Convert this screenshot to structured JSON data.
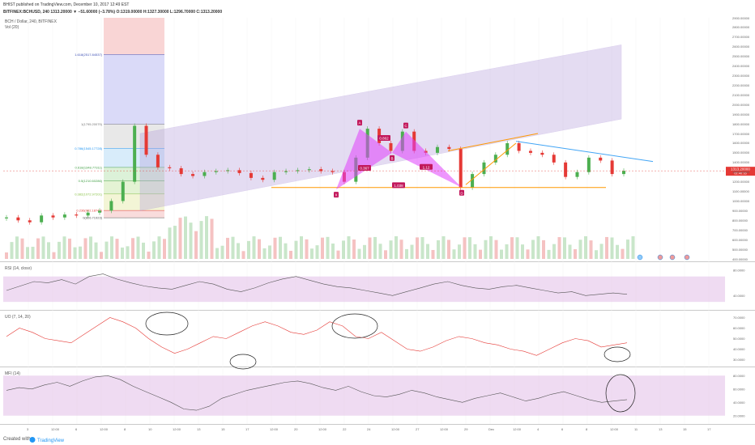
{
  "header": {
    "author_line": "BHIST published on TradingView.com, December 10, 2017 12:49 EST",
    "ticker_line": "BITFINEX:BCHUSD, 240  1313.20000 ▼ −51.60000 (−3.78%) O:1319.00000 H:1327.30000 L:1296.70000 C:1313.20000",
    "chart_title": "BCH / Dollar, 240, BITFINEX",
    "vol_label": "Vol (20)"
  },
  "price_axis": [
    "2900.00000",
    "2800.00000",
    "2700.00000",
    "2600.00000",
    "2500.00000",
    "2400.00000",
    "2300.00000",
    "2200.00000",
    "2100.00000",
    "2000.00000",
    "1900.00000",
    "1800.00000",
    "1700.00000",
    "1600.00000",
    "1500.00000",
    "1400.00000",
    "1300.00000",
    "1200.00000",
    "1100.00000",
    "1000.00000",
    "900.00000",
    "800.00000",
    "700.00000",
    "600.00000",
    "500.00000",
    "400.00000"
  ],
  "last_price": "1313.20000",
  "last_time": "02:40:16",
  "fib_levels": [
    {
      "label": "1.618(2517.84537)",
      "color": "#3f51b5"
    },
    {
      "label": "1(1795.20079)",
      "color": "#777777"
    },
    {
      "label": "0.786(1545.17728)",
      "color": "#2196f3"
    },
    {
      "label": "0.618(1348.77311)",
      "color": "#43a047"
    },
    {
      "label": "0.5(1210.60286)",
      "color": "#43a047"
    },
    {
      "label": "0.382(1072.97201)",
      "color": "#8bc34a"
    },
    {
      "label": "0.236(902.18743)",
      "color": "#e53935"
    },
    {
      "label": "0(826.71923)",
      "color": "#555555"
    }
  ],
  "pattern_points": [
    "X",
    "A",
    "B",
    "C",
    "D"
  ],
  "pattern_ratios": [
    "0.862",
    "0.367",
    "1.12",
    "1.038"
  ],
  "indicators": {
    "rsi": {
      "label": "RSI (14, close)",
      "ticks": [
        "80.0000",
        "40.0000"
      ]
    },
    "uo": {
      "label": "UO (7, 14, 28)",
      "ticks": [
        "70.0000",
        "60.0000",
        "50.0000",
        "40.0000",
        "30.0000"
      ]
    },
    "mfi": {
      "label": "MFI (14)",
      "ticks": [
        "80.0000",
        "60.0000",
        "40.0000",
        "20.0000"
      ]
    }
  },
  "time_axis": [
    "3",
    "12:00",
    "6",
    "12:00",
    "8",
    "10",
    "12:00",
    "13",
    "15",
    "17",
    "12:00",
    "20",
    "12:00",
    "22",
    "24",
    "12:00",
    "27",
    "12:00",
    "29",
    "Dec",
    "12:00",
    "4",
    "6",
    "8",
    "12:00",
    "11",
    "13",
    "15",
    "17"
  ],
  "footer": {
    "created": "Created with",
    "brand": "TradingView"
  },
  "chart_data": {
    "type": "candlestick",
    "title": "BCH / Dollar, 240, BITFINEX",
    "ylabel": "",
    "ylim": [
      400,
      2900
    ],
    "series": [
      {
        "name": "BCHUSD",
        "values": [
          830,
          800,
          780,
          850,
          830,
          860,
          850,
          880,
          900,
          1000,
          1200,
          1780,
          1480,
          1350,
          1340,
          1280,
          1260,
          1300,
          1310,
          1320,
          1290,
          1240,
          1220,
          1300,
          1310,
          1320,
          1330,
          1310,
          1300,
          1200,
          1450,
          1750,
          1600,
          1520,
          1720,
          1520,
          1500,
          1560,
          1540,
          1140,
          1280,
          1400,
          1480,
          1600,
          1520,
          1500,
          1480,
          1400,
          1250,
          1300,
          1450,
          1420,
          1280,
          1313.2
        ]
      }
    ],
    "colors": {
      "up": "#4caf50",
      "down": "#e53935"
    },
    "fibonacci": [
      {
        "ratio": 1.618,
        "price": 2517.84537
      },
      {
        "ratio": 1,
        "price": 1795.20079
      },
      {
        "ratio": 0.786,
        "price": 1545.17728
      },
      {
        "ratio": 0.618,
        "price": 1348.77311
      },
      {
        "ratio": 0.5,
        "price": 1210.60286
      },
      {
        "ratio": 0.382,
        "price": 1072.97201
      },
      {
        "ratio": 0.236,
        "price": 902.18743
      },
      {
        "ratio": 0,
        "price": 826.71923
      }
    ],
    "harmonic_pattern": {
      "points": [
        {
          "label": "X",
          "price": 1120
        },
        {
          "label": "A",
          "price": 1750
        },
        {
          "label": "B",
          "price": 1500
        },
        {
          "label": "C",
          "price": 1720
        },
        {
          "label": "D",
          "price": 1140
        }
      ],
      "ratios": [
        "0.862",
        "0.367",
        "1.12",
        "1.038"
      ]
    },
    "rsi": [
      48,
      55,
      62,
      60,
      65,
      58,
      70,
      74,
      66,
      60,
      55,
      52,
      50,
      56,
      62,
      58,
      50,
      46,
      52,
      60,
      66,
      70,
      64,
      58,
      54,
      52,
      48,
      44,
      40,
      46,
      52,
      58,
      62,
      56,
      52,
      50,
      54,
      56,
      52,
      48,
      44,
      46,
      40,
      42,
      44,
      42
    ],
    "uo": [
      52,
      60,
      56,
      50,
      48,
      46,
      54,
      62,
      70,
      66,
      60,
      50,
      42,
      36,
      40,
      46,
      52,
      50,
      56,
      62,
      66,
      62,
      56,
      54,
      58,
      66,
      62,
      52,
      50,
      56,
      48,
      40,
      38,
      42,
      48,
      52,
      50,
      46,
      44,
      40,
      38,
      34,
      40,
      46,
      50,
      48,
      42,
      44,
      46
    ],
    "mfi": [
      58,
      62,
      60,
      66,
      70,
      64,
      72,
      78,
      80,
      74,
      64,
      56,
      48,
      40,
      30,
      28,
      34,
      46,
      52,
      58,
      62,
      66,
      70,
      72,
      68,
      62,
      58,
      64,
      56,
      50,
      48,
      52,
      58,
      54,
      48,
      44,
      40,
      46,
      50,
      54,
      48,
      42,
      46,
      52,
      56,
      50,
      44,
      40,
      42,
      44
    ]
  }
}
